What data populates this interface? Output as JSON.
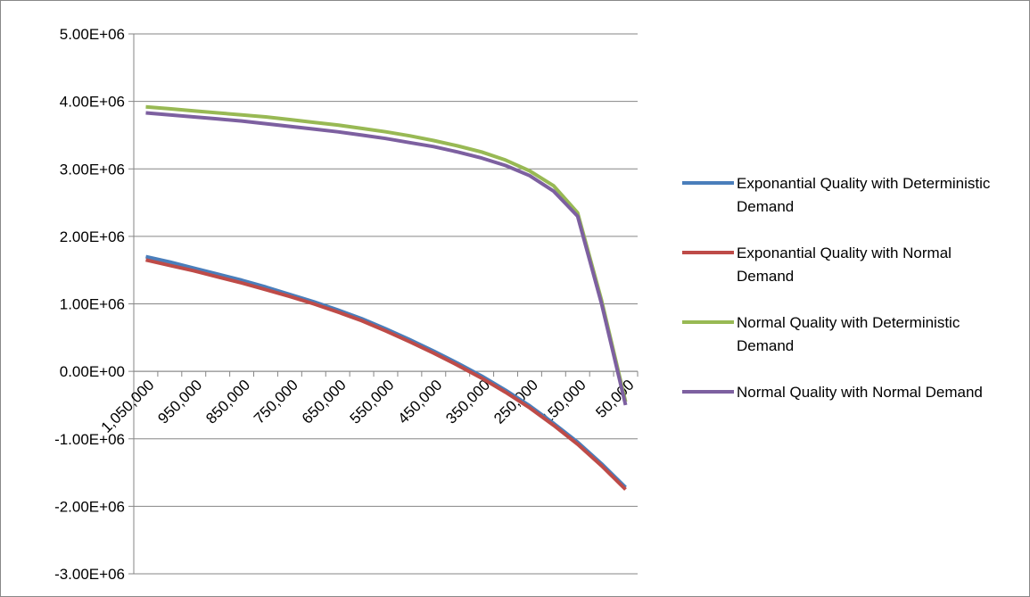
{
  "chart_data": {
    "type": "line",
    "categories": [
      "1,050,000",
      null,
      "950,000",
      null,
      "850,000",
      null,
      "750,000",
      null,
      "650,000",
      null,
      "550,000",
      null,
      "450,000",
      null,
      "350,000",
      null,
      "250,000",
      null,
      "150,000",
      null,
      "50,000"
    ],
    "series": [
      {
        "name": "Exponantial Quality with Deterministic Demand",
        "color": "#4a7ebb",
        "values": [
          1700000,
          1620000,
          1530000,
          1440000,
          1350000,
          1250000,
          1140000,
          1030000,
          910000,
          780000,
          630000,
          470000,
          300000,
          120000,
          -70000,
          -280000,
          -510000,
          -770000,
          -1050000,
          -1370000,
          -1720000
        ]
      },
      {
        "name": "Exponantial Quality with Normal Demand",
        "color": "#be4b48",
        "values": [
          1650000,
          1570000,
          1490000,
          1400000,
          1310000,
          1210000,
          1110000,
          1000000,
          880000,
          750000,
          600000,
          440000,
          270000,
          90000,
          -100000,
          -310000,
          -540000,
          -800000,
          -1080000,
          -1400000,
          -1750000
        ]
      },
      {
        "name": "Normal Quality with Deterministic Demand",
        "color": "#98b954",
        "values": [
          3920000,
          3890000,
          3860000,
          3830000,
          3800000,
          3770000,
          3730000,
          3690000,
          3650000,
          3600000,
          3550000,
          3490000,
          3420000,
          3340000,
          3250000,
          3130000,
          2970000,
          2750000,
          2350000,
          1050000,
          -450000
        ]
      },
      {
        "name": "Normal Quality with Normal Demand",
        "color": "#7d60a0",
        "values": [
          3830000,
          3800000,
          3770000,
          3740000,
          3710000,
          3670000,
          3630000,
          3590000,
          3550000,
          3500000,
          3450000,
          3390000,
          3330000,
          3250000,
          3160000,
          3050000,
          2900000,
          2670000,
          2300000,
          1000000,
          -500000
        ]
      }
    ],
    "ylim": [
      -3000000,
      5000000
    ],
    "yticks": [
      {
        "value": -3000000,
        "label": "-3.00E+06"
      },
      {
        "value": -2000000,
        "label": "-2.00E+06"
      },
      {
        "value": -1000000,
        "label": "-1.00E+06"
      },
      {
        "value": 0,
        "label": "0.00E+00"
      },
      {
        "value": 1000000,
        "label": "1.00E+06"
      },
      {
        "value": 2000000,
        "label": "2.00E+06"
      },
      {
        "value": 3000000,
        "label": "3.00E+06"
      },
      {
        "value": 4000000,
        "label": "4.00E+06"
      },
      {
        "value": 5000000,
        "label": "5.00E+06"
      }
    ],
    "grid": true,
    "legend": "right"
  }
}
